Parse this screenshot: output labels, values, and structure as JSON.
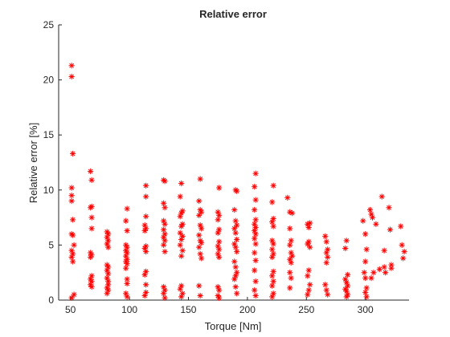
{
  "chart_data": {
    "type": "scatter",
    "title": "Relative error",
    "xlabel": "Torque [Nm]",
    "ylabel": "Relative error [%]",
    "xlim": [
      40,
      337
    ],
    "ylim": [
      0,
      25
    ],
    "xticks": [
      50,
      100,
      150,
      200,
      250,
      300
    ],
    "yticks": [
      0,
      5,
      10,
      15,
      20,
      25
    ],
    "grid": false,
    "marker": "asterisk",
    "marker_color": "#ff0000",
    "series": [
      {
        "points": [
          [
            51,
            21.3
          ],
          [
            51,
            20.3
          ],
          [
            52,
            13.3
          ],
          [
            51,
            10.2
          ],
          [
            51,
            9.5
          ],
          [
            51,
            9.0
          ],
          [
            52,
            7.3
          ],
          [
            51,
            6.0
          ],
          [
            52,
            5.9
          ],
          [
            53,
            5.0
          ],
          [
            51,
            4.5
          ],
          [
            52,
            4.2
          ],
          [
            51,
            3.9
          ],
          [
            52,
            3.5
          ],
          [
            53,
            0.5
          ],
          [
            51,
            0.2
          ],
          [
            67,
            11.7
          ],
          [
            68,
            10.9
          ],
          [
            68,
            8.5
          ],
          [
            67,
            8.4
          ],
          [
            68,
            7.5
          ],
          [
            68,
            6.5
          ],
          [
            67,
            4.3
          ],
          [
            68,
            4.1
          ],
          [
            67,
            3.9
          ],
          [
            68,
            2.2
          ],
          [
            67,
            1.9
          ],
          [
            68,
            1.7
          ],
          [
            67,
            1.4
          ],
          [
            68,
            1.2
          ],
          [
            81,
            6.2
          ],
          [
            82,
            6.0
          ],
          [
            81,
            5.7
          ],
          [
            82,
            5.4
          ],
          [
            81,
            5.1
          ],
          [
            82,
            4.8
          ],
          [
            81,
            3.2
          ],
          [
            82,
            3.0
          ],
          [
            81,
            2.7
          ],
          [
            82,
            2.4
          ],
          [
            81,
            2.0
          ],
          [
            82,
            1.7
          ],
          [
            82,
            1.4
          ],
          [
            81,
            1.1
          ],
          [
            82,
            0.9
          ],
          [
            81,
            0.6
          ],
          [
            98,
            8.3
          ],
          [
            97,
            7.2
          ],
          [
            98,
            6.3
          ],
          [
            97,
            5.0
          ],
          [
            98,
            4.8
          ],
          [
            97,
            4.5
          ],
          [
            98,
            4.3
          ],
          [
            97,
            4.0
          ],
          [
            98,
            3.7
          ],
          [
            97,
            3.5
          ],
          [
            98,
            3.3
          ],
          [
            97,
            2.9
          ],
          [
            98,
            1.9
          ],
          [
            98,
            1.5
          ],
          [
            97,
            0.6
          ],
          [
            98,
            0.3
          ],
          [
            114,
            10.4
          ],
          [
            114,
            9.4
          ],
          [
            114,
            7.6
          ],
          [
            113,
            6.8
          ],
          [
            114,
            6.5
          ],
          [
            113,
            6.3
          ],
          [
            114,
            4.9
          ],
          [
            113,
            4.7
          ],
          [
            114,
            4.4
          ],
          [
            114,
            2.6
          ],
          [
            113,
            2.3
          ],
          [
            114,
            1.4
          ],
          [
            114,
            0.7
          ],
          [
            113,
            0.4
          ],
          [
            129,
            10.9
          ],
          [
            130,
            10.8
          ],
          [
            129,
            8.8
          ],
          [
            130,
            8.4
          ],
          [
            129,
            7.2
          ],
          [
            130,
            6.9
          ],
          [
            129,
            6.4
          ],
          [
            130,
            6.0
          ],
          [
            129,
            5.7
          ],
          [
            130,
            5.4
          ],
          [
            129,
            5.0
          ],
          [
            130,
            4.4
          ],
          [
            129,
            1.2
          ],
          [
            130,
            0.9
          ],
          [
            129,
            0.6
          ],
          [
            130,
            0.2
          ],
          [
            144,
            10.6
          ],
          [
            143,
            9.4
          ],
          [
            145,
            8.1
          ],
          [
            144,
            7.9
          ],
          [
            143,
            7.6
          ],
          [
            145,
            6.9
          ],
          [
            144,
            6.7
          ],
          [
            143,
            6.1
          ],
          [
            145,
            5.8
          ],
          [
            144,
            5.5
          ],
          [
            143,
            5.0
          ],
          [
            145,
            4.5
          ],
          [
            144,
            4.0
          ],
          [
            144,
            1.3
          ],
          [
            143,
            1.0
          ],
          [
            145,
            0.6
          ],
          [
            144,
            0.3
          ],
          [
            160,
            11.0
          ],
          [
            159,
            9.0
          ],
          [
            160,
            8.2
          ],
          [
            161,
            8.0
          ],
          [
            159,
            7.7
          ],
          [
            160,
            6.8
          ],
          [
            161,
            6.5
          ],
          [
            159,
            5.9
          ],
          [
            160,
            5.4
          ],
          [
            161,
            5.2
          ],
          [
            159,
            4.8
          ],
          [
            160,
            4.2
          ],
          [
            161,
            3.8
          ],
          [
            159,
            1.3
          ],
          [
            160,
            0.4
          ],
          [
            176,
            10.2
          ],
          [
            175,
            8.0
          ],
          [
            176,
            7.7
          ],
          [
            175,
            7.3
          ],
          [
            176,
            6.4
          ],
          [
            175,
            6.1
          ],
          [
            176,
            5.3
          ],
          [
            175,
            4.9
          ],
          [
            176,
            4.6
          ],
          [
            175,
            4.2
          ],
          [
            176,
            3.9
          ],
          [
            175,
            1.2
          ],
          [
            176,
            0.9
          ],
          [
            175,
            0.4
          ],
          [
            176,
            0.2
          ],
          [
            190,
            10.0
          ],
          [
            191,
            9.9
          ],
          [
            189,
            8.2
          ],
          [
            190,
            7.2
          ],
          [
            191,
            6.8
          ],
          [
            189,
            6.5
          ],
          [
            190,
            6.1
          ],
          [
            191,
            5.5
          ],
          [
            189,
            5.1
          ],
          [
            190,
            4.8
          ],
          [
            191,
            4.4
          ],
          [
            189,
            3.5
          ],
          [
            190,
            3.0
          ],
          [
            191,
            2.5
          ],
          [
            190,
            2.2
          ],
          [
            189,
            1.9
          ],
          [
            190,
            1.2
          ],
          [
            191,
            0.6
          ],
          [
            207,
            11.5
          ],
          [
            206,
            10.3
          ],
          [
            207,
            9.1
          ],
          [
            206,
            8.2
          ],
          [
            207,
            7.3
          ],
          [
            206,
            6.9
          ],
          [
            207,
            6.6
          ],
          [
            206,
            6.3
          ],
          [
            207,
            6.0
          ],
          [
            206,
            5.6
          ],
          [
            207,
            5.1
          ],
          [
            206,
            4.3
          ],
          [
            207,
            3.6
          ],
          [
            206,
            2.7
          ],
          [
            207,
            1.7
          ],
          [
            206,
            0.9
          ],
          [
            207,
            0.4
          ],
          [
            222,
            10.4
          ],
          [
            221,
            8.9
          ],
          [
            222,
            7.4
          ],
          [
            221,
            7.1
          ],
          [
            222,
            6.7
          ],
          [
            221,
            5.4
          ],
          [
            222,
            5.1
          ],
          [
            221,
            4.6
          ],
          [
            222,
            4.2
          ],
          [
            221,
            3.9
          ],
          [
            222,
            2.6
          ],
          [
            221,
            2.2
          ],
          [
            222,
            1.7
          ],
          [
            221,
            1.3
          ],
          [
            222,
            0.6
          ],
          [
            221,
            0.3
          ],
          [
            234,
            9.3
          ],
          [
            236,
            8.0
          ],
          [
            238,
            7.9
          ],
          [
            236,
            6.5
          ],
          [
            237,
            5.4
          ],
          [
            236,
            5.0
          ],
          [
            237,
            4.3
          ],
          [
            238,
            4.0
          ],
          [
            236,
            3.7
          ],
          [
            237,
            3.4
          ],
          [
            236,
            2.5
          ],
          [
            237,
            2.0
          ],
          [
            236,
            1.1
          ],
          [
            251,
            6.9
          ],
          [
            252,
            6.6
          ],
          [
            253,
            7.0
          ],
          [
            252,
            5.3
          ],
          [
            251,
            5.1
          ],
          [
            253,
            4.8
          ],
          [
            252,
            2.7
          ],
          [
            251,
            2.2
          ],
          [
            253,
            1.4
          ],
          [
            252,
            0.9
          ],
          [
            251,
            0.5
          ],
          [
            266,
            5.8
          ],
          [
            267,
            5.3
          ],
          [
            268,
            4.6
          ],
          [
            267,
            4.3
          ],
          [
            268,
            3.9
          ],
          [
            267,
            3.4
          ],
          [
            266,
            1.4
          ],
          [
            267,
            0.9
          ],
          [
            268,
            0.5
          ],
          [
            284,
            5.4
          ],
          [
            283,
            4.7
          ],
          [
            285,
            2.3
          ],
          [
            283,
            1.9
          ],
          [
            284,
            1.6
          ],
          [
            285,
            1.3
          ],
          [
            283,
            1.0
          ],
          [
            284,
            0.8
          ],
          [
            285,
            0.5
          ],
          [
            284,
            0.3
          ],
          [
            298,
            7.2
          ],
          [
            300,
            6.0
          ],
          [
            301,
            4.6
          ],
          [
            300,
            3.5
          ],
          [
            299,
            2.5
          ],
          [
            300,
            2.0
          ],
          [
            301,
            1.1
          ],
          [
            300,
            0.7
          ],
          [
            301,
            0.3
          ],
          [
            304,
            8.2
          ],
          [
            305,
            7.8
          ],
          [
            306,
            7.5
          ],
          [
            307,
            2.5
          ],
          [
            305,
            2.0
          ],
          [
            309,
            6.9
          ],
          [
            312,
            2.8
          ],
          [
            314,
            9.4
          ],
          [
            316,
            4.5
          ],
          [
            316,
            3.0
          ],
          [
            317,
            2.5
          ],
          [
            320,
            8.4
          ],
          [
            321,
            6.4
          ],
          [
            322,
            2.9
          ],
          [
            322,
            3.2
          ],
          [
            330,
            6.7
          ],
          [
            331,
            5.0
          ],
          [
            333,
            4.4
          ],
          [
            332,
            3.8
          ]
        ]
      }
    ]
  }
}
